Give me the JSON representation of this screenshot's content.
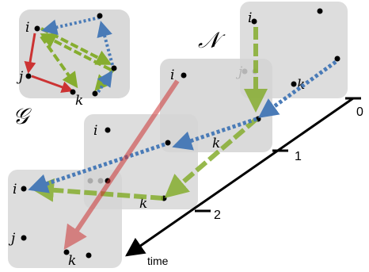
{
  "symbols": {
    "small_graph": "𝒢",
    "big_network": "𝒩"
  },
  "nodes": {
    "i": "i",
    "j": "j",
    "k": "k"
  },
  "timeline": {
    "ticks": [
      "0",
      "1",
      "2"
    ],
    "axis_label": "time"
  },
  "colors": {
    "panel": "#d9d9d9",
    "red": "#cc3333",
    "green": "#86ad2f",
    "blue": "#4a7bb7",
    "axis": "#000000"
  }
}
